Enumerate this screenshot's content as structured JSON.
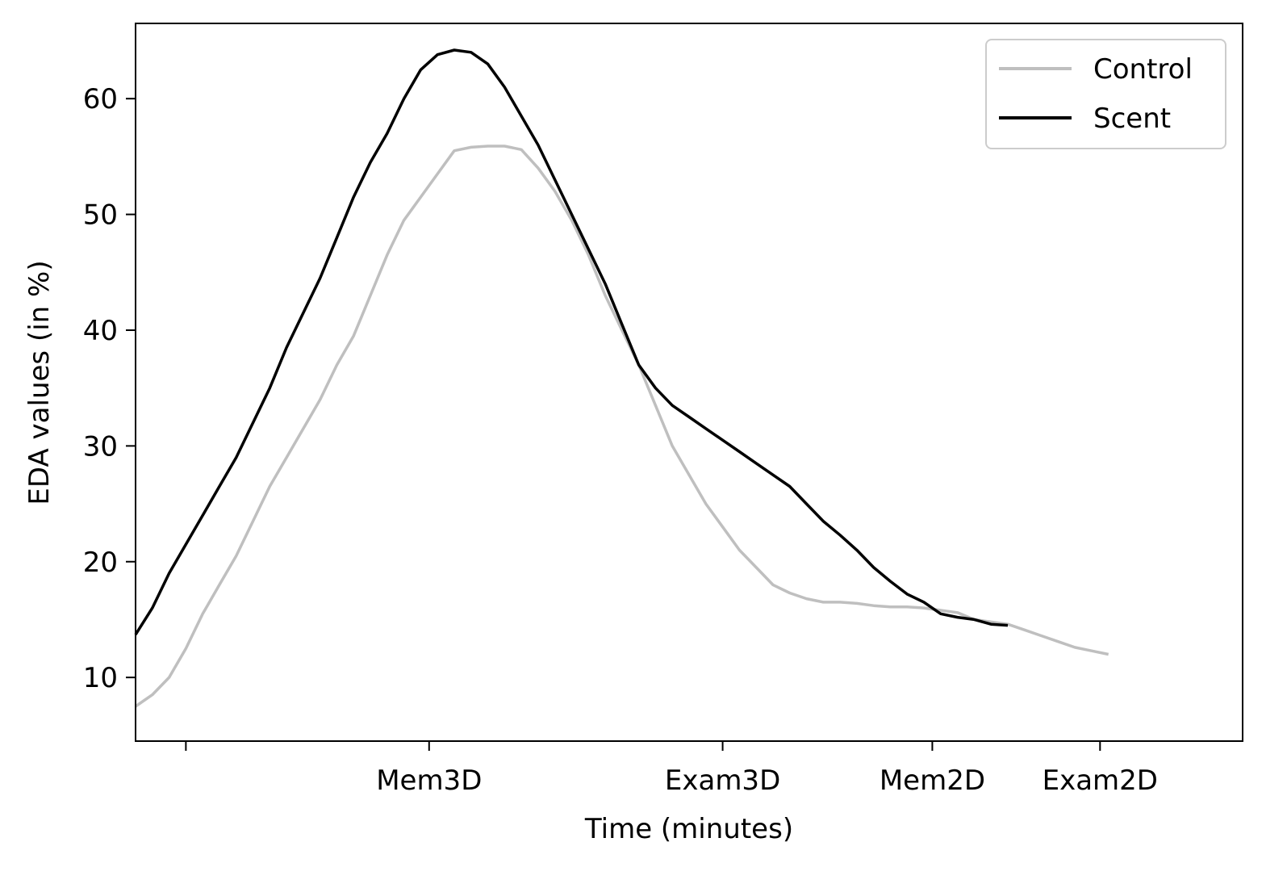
{
  "chart_data": {
    "type": "line",
    "title": "",
    "xlabel": "Time (minutes)",
    "ylabel": "EDA values (in %)",
    "xlim": [
      -0.3,
      6.3
    ],
    "ylim": [
      4.5,
      66.5
    ],
    "grid": false,
    "legend_position": "top-right",
    "x_ticks": [
      {
        "x": 0.0,
        "label": ""
      },
      {
        "x": 1.45,
        "label": "Mem3D"
      },
      {
        "x": 3.2,
        "label": "Exam3D"
      },
      {
        "x": 4.45,
        "label": "Mem2D"
      },
      {
        "x": 5.45,
        "label": "Exam2D"
      }
    ],
    "y_ticks": [
      10,
      20,
      30,
      40,
      50,
      60
    ],
    "series": [
      {
        "name": "Control",
        "color": "#bfbfbf",
        "points": [
          [
            -0.3,
            7.5
          ],
          [
            -0.2,
            8.5
          ],
          [
            -0.1,
            10.0
          ],
          [
            0.0,
            12.5
          ],
          [
            0.1,
            15.5
          ],
          [
            0.2,
            18.0
          ],
          [
            0.3,
            20.5
          ],
          [
            0.4,
            23.5
          ],
          [
            0.5,
            26.5
          ],
          [
            0.6,
            29.0
          ],
          [
            0.7,
            31.5
          ],
          [
            0.8,
            34.0
          ],
          [
            0.9,
            37.0
          ],
          [
            1.0,
            39.5
          ],
          [
            1.1,
            43.0
          ],
          [
            1.2,
            46.5
          ],
          [
            1.3,
            49.5
          ],
          [
            1.4,
            51.5
          ],
          [
            1.5,
            53.5
          ],
          [
            1.6,
            55.5
          ],
          [
            1.7,
            55.8
          ],
          [
            1.8,
            55.9
          ],
          [
            1.9,
            55.9
          ],
          [
            2.0,
            55.6
          ],
          [
            2.1,
            54.0
          ],
          [
            2.2,
            52.0
          ],
          [
            2.3,
            49.5
          ],
          [
            2.4,
            46.5
          ],
          [
            2.5,
            43.0
          ],
          [
            2.6,
            40.0
          ],
          [
            2.7,
            37.0
          ],
          [
            2.8,
            33.5
          ],
          [
            2.9,
            30.0
          ],
          [
            3.0,
            27.5
          ],
          [
            3.1,
            25.0
          ],
          [
            3.2,
            23.0
          ],
          [
            3.3,
            21.0
          ],
          [
            3.4,
            19.5
          ],
          [
            3.5,
            18.0
          ],
          [
            3.6,
            17.3
          ],
          [
            3.7,
            16.8
          ],
          [
            3.8,
            16.5
          ],
          [
            3.9,
            16.5
          ],
          [
            4.0,
            16.4
          ],
          [
            4.1,
            16.2
          ],
          [
            4.2,
            16.1
          ],
          [
            4.3,
            16.1
          ],
          [
            4.4,
            16.0
          ],
          [
            4.5,
            15.8
          ],
          [
            4.6,
            15.6
          ],
          [
            4.7,
            15.0
          ],
          [
            4.8,
            14.8
          ],
          [
            4.9,
            14.6
          ],
          [
            5.0,
            14.1
          ],
          [
            5.1,
            13.6
          ],
          [
            5.2,
            13.1
          ],
          [
            5.3,
            12.6
          ],
          [
            5.4,
            12.3
          ],
          [
            5.5,
            12.0
          ]
        ]
      },
      {
        "name": "Scent",
        "color": "#000000",
        "points": [
          [
            -0.3,
            13.7
          ],
          [
            -0.2,
            16.0
          ],
          [
            -0.1,
            19.0
          ],
          [
            0.0,
            21.5
          ],
          [
            0.1,
            24.0
          ],
          [
            0.2,
            26.5
          ],
          [
            0.3,
            29.0
          ],
          [
            0.4,
            32.0
          ],
          [
            0.5,
            35.0
          ],
          [
            0.6,
            38.5
          ],
          [
            0.7,
            41.5
          ],
          [
            0.8,
            44.5
          ],
          [
            0.9,
            48.0
          ],
          [
            1.0,
            51.5
          ],
          [
            1.1,
            54.5
          ],
          [
            1.2,
            57.0
          ],
          [
            1.3,
            60.0
          ],
          [
            1.4,
            62.5
          ],
          [
            1.5,
            63.8
          ],
          [
            1.6,
            64.2
          ],
          [
            1.7,
            64.0
          ],
          [
            1.8,
            63.0
          ],
          [
            1.9,
            61.0
          ],
          [
            2.0,
            58.5
          ],
          [
            2.1,
            56.0
          ],
          [
            2.2,
            53.0
          ],
          [
            2.3,
            50.0
          ],
          [
            2.4,
            47.0
          ],
          [
            2.5,
            44.0
          ],
          [
            2.6,
            40.5
          ],
          [
            2.7,
            37.0
          ],
          [
            2.8,
            35.0
          ],
          [
            2.9,
            33.5
          ],
          [
            3.0,
            32.5
          ],
          [
            3.1,
            31.5
          ],
          [
            3.2,
            30.5
          ],
          [
            3.3,
            29.5
          ],
          [
            3.4,
            28.5
          ],
          [
            3.5,
            27.5
          ],
          [
            3.6,
            26.5
          ],
          [
            3.7,
            25.0
          ],
          [
            3.8,
            23.5
          ],
          [
            3.9,
            22.3
          ],
          [
            4.0,
            21.0
          ],
          [
            4.1,
            19.5
          ],
          [
            4.2,
            18.3
          ],
          [
            4.3,
            17.2
          ],
          [
            4.4,
            16.5
          ],
          [
            4.5,
            15.5
          ],
          [
            4.6,
            15.2
          ],
          [
            4.7,
            15.0
          ],
          [
            4.8,
            14.6
          ],
          [
            4.9,
            14.5
          ]
        ]
      }
    ]
  }
}
